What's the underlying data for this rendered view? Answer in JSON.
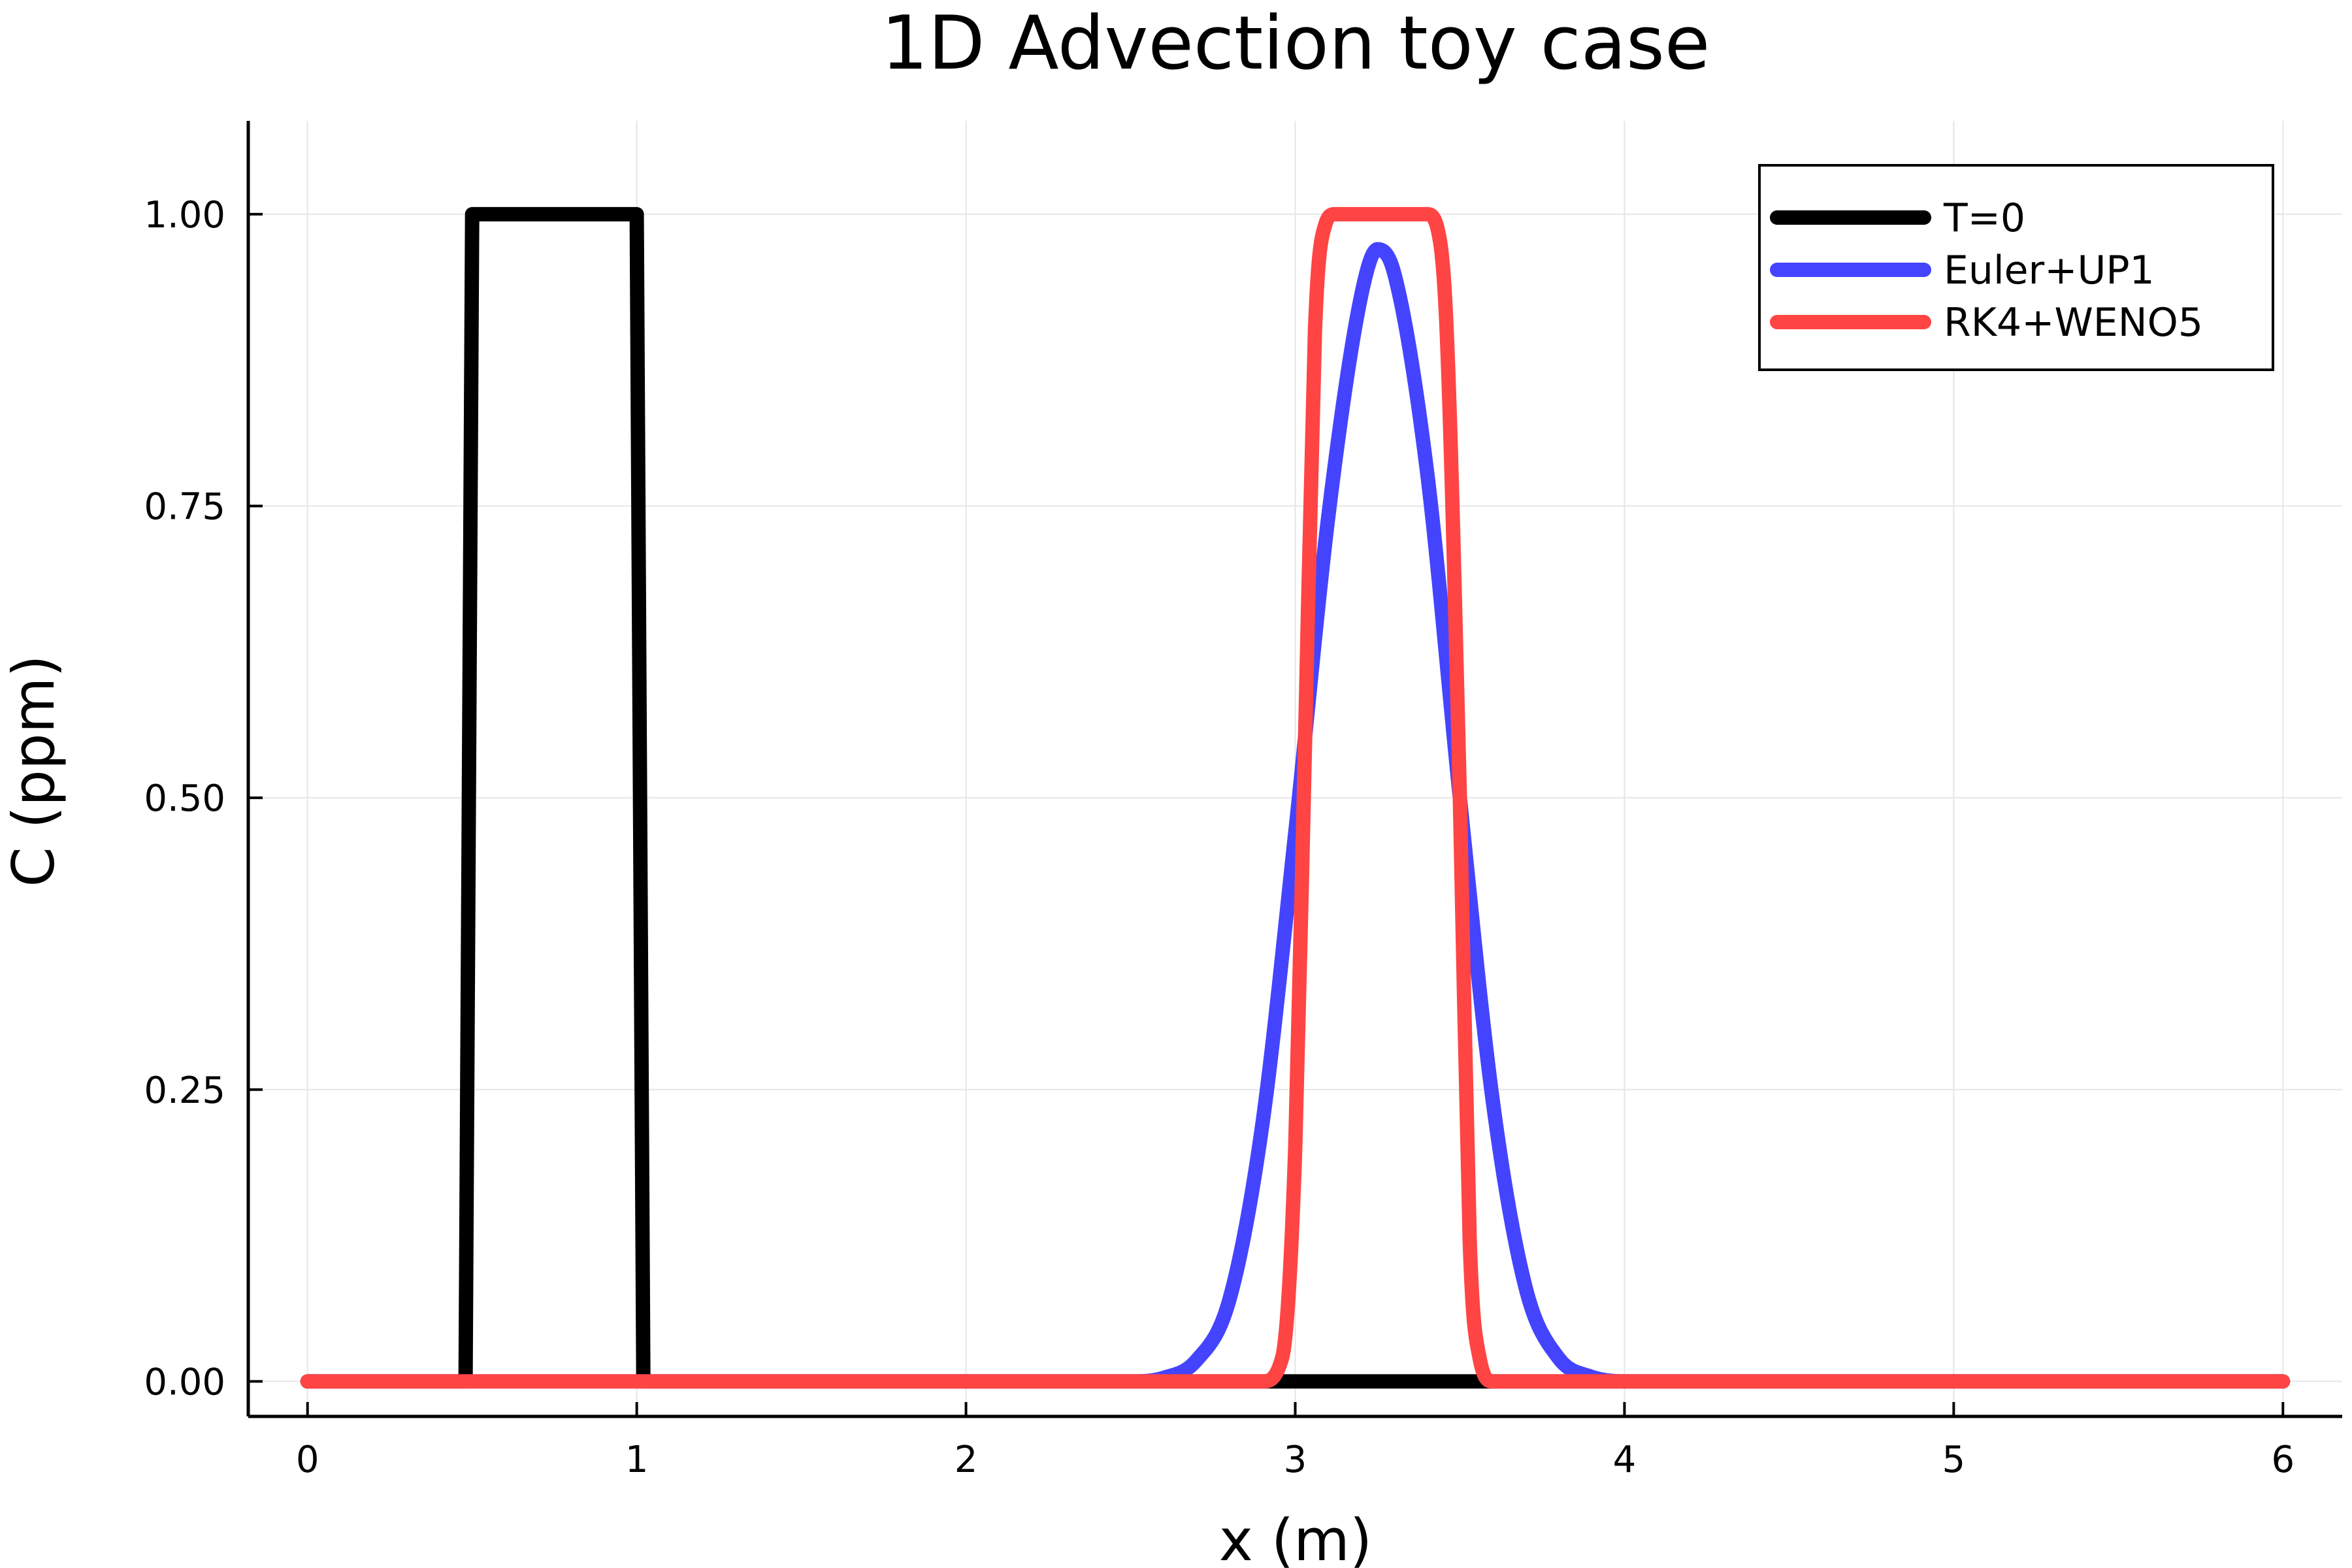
{
  "chart_data": {
    "type": "line",
    "title": "1D Advection toy case",
    "xlabel": "x (m)",
    "ylabel": "C (ppm)",
    "xlim": [
      -0.18,
      6.18
    ],
    "ylim": [
      -0.03,
      1.08
    ],
    "xticks": [
      0,
      1,
      2,
      3,
      4,
      5,
      6
    ],
    "xtick_labels": [
      "0",
      "1",
      "2",
      "3",
      "4",
      "5",
      "6"
    ],
    "yticks": [
      0,
      0.25,
      0.5,
      0.75,
      1.0
    ],
    "ytick_labels": [
      "0.00",
      "0.25",
      "0.50",
      "0.75",
      "1.00"
    ],
    "grid": true,
    "legend_position": "top-right",
    "series": [
      {
        "name": "T=0",
        "color": "#000000",
        "x": [
          0,
          0.48,
          0.5,
          1.0,
          1.02,
          6.0
        ],
        "y": [
          0,
          0,
          1,
          1,
          0,
          0
        ]
      },
      {
        "name": "Euler+UP1",
        "color": "#4444ff",
        "x": [
          0,
          2.5,
          2.6,
          2.7,
          2.8,
          2.9,
          3.0,
          3.1,
          3.2,
          3.25,
          3.3,
          3.4,
          3.5,
          3.6,
          3.7,
          3.8,
          3.9,
          4.0,
          6.0
        ],
        "y": [
          0,
          0,
          0.003,
          0.018,
          0.07,
          0.22,
          0.47,
          0.74,
          0.93,
          0.97,
          0.95,
          0.78,
          0.5,
          0.24,
          0.08,
          0.02,
          0.004,
          0,
          0
        ]
      },
      {
        "name": "RK4+WENO5",
        "color": "#ff4444",
        "x": [
          0,
          2.9,
          2.96,
          3.0,
          3.03,
          3.06,
          3.09,
          3.12,
          3.4,
          3.43,
          3.46,
          3.5,
          3.53,
          3.56,
          3.6,
          6.0
        ],
        "y": [
          0,
          0,
          0.02,
          0.2,
          0.55,
          0.9,
          0.99,
          1.0,
          1.0,
          0.99,
          0.9,
          0.5,
          0.12,
          0.02,
          0,
          0
        ]
      }
    ]
  }
}
